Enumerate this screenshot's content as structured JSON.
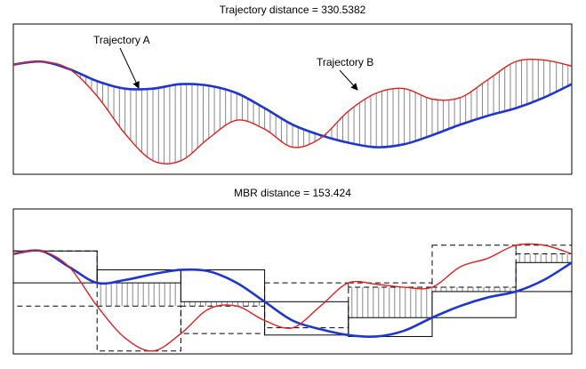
{
  "chart_data": [
    {
      "type": "line",
      "title": "Trajectory distance = 330.5382",
      "x": [
        0,
        5,
        10,
        15,
        20,
        25,
        30,
        35,
        40,
        45,
        50,
        55,
        60,
        65,
        70,
        75,
        80,
        85,
        90,
        95,
        100
      ],
      "xlim": [
        0,
        100
      ],
      "ylim": [
        0,
        100
      ],
      "hatch": true,
      "series": [
        {
          "name": "Trajectory A",
          "color": "#1f35d0",
          "values": [
            73,
            75,
            70,
            62,
            57,
            57,
            60,
            59,
            54,
            44,
            33,
            26,
            21,
            18,
            20,
            26,
            33,
            39,
            44,
            51,
            60
          ]
        },
        {
          "name": "Trajectory B",
          "color": "#e02020",
          "values": [
            73,
            75,
            70,
            52,
            27,
            9,
            9,
            24,
            36,
            30,
            18,
            24,
            42,
            54,
            57,
            50,
            51,
            63,
            75,
            76,
            72
          ]
        }
      ]
    },
    {
      "type": "line",
      "title": "MBR distance = 153.424",
      "mbr": true,
      "x": [
        0,
        5,
        10,
        15,
        20,
        25,
        30,
        35,
        40,
        45,
        50,
        55,
        60,
        65,
        70,
        75,
        80,
        85,
        90,
        95,
        100
      ],
      "xlim": [
        0,
        100
      ],
      "ylim": [
        0,
        100
      ],
      "series": [
        {
          "color": "#1f35d0",
          "values": [
            69,
            71,
            60,
            49,
            51,
            55,
            58,
            57,
            49,
            36,
            23,
            17,
            13,
            12,
            16,
            25,
            33,
            39,
            43,
            51,
            63
          ]
        },
        {
          "color": "#e02020",
          "values": [
            69,
            71,
            60,
            33,
            11,
            2,
            14,
            31,
            33,
            23,
            18,
            33,
            49,
            48,
            46,
            46,
            60,
            66,
            75,
            75,
            69
          ]
        }
      ]
    }
  ]
}
